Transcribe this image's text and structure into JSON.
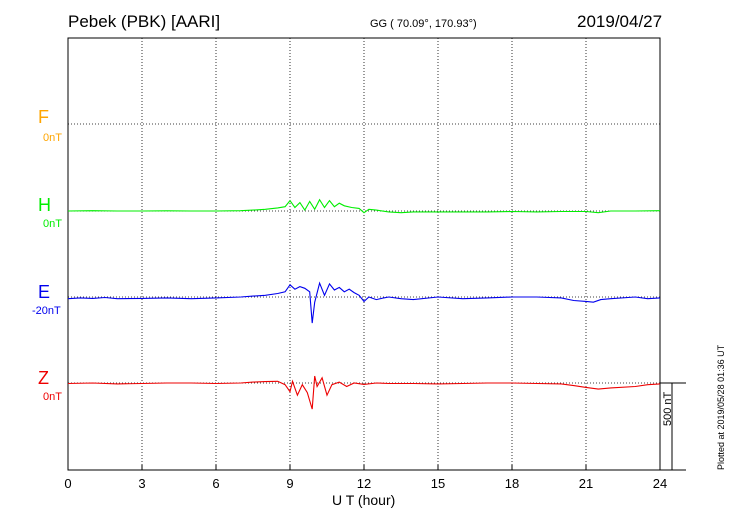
{
  "header": {
    "station": "Pebek (PBK)  [AARI]",
    "coords": "GG ( 70.09°, 170.93°)",
    "date": "2019/04/27"
  },
  "footer": {
    "plotted": "Plotted at 2019/05/28 01:36 UT"
  },
  "chart_data": {
    "type": "line",
    "xlabel": "U T (hour)",
    "xlim": [
      0,
      24
    ],
    "xticks": [
      "0",
      "3",
      "6",
      "9",
      "12",
      "15",
      "18",
      "21",
      "24"
    ],
    "scale_bar": "500 nT",
    "grid": true,
    "series": [
      {
        "name": "F",
        "offset_label": "0nT",
        "color": "#ffa500",
        "x": [],
        "y": []
      },
      {
        "name": "H",
        "offset_label": "0nT",
        "color": "#00ee00",
        "x": [
          0,
          1,
          2,
          3,
          4,
          5,
          6,
          7,
          7.5,
          8,
          8.5,
          8.8,
          9.0,
          9.2,
          9.4,
          9.6,
          9.8,
          10.0,
          10.2,
          10.4,
          10.6,
          10.8,
          11.0,
          11.2,
          11.5,
          11.8,
          12.0,
          12.2,
          12.5,
          13.0,
          13.5,
          14,
          15,
          16,
          17,
          18,
          19,
          20,
          21,
          21.5,
          22,
          23,
          24
        ],
        "y": [
          0,
          2,
          0,
          0,
          1,
          0,
          0,
          2,
          5,
          10,
          18,
          25,
          60,
          20,
          48,
          5,
          55,
          10,
          65,
          20,
          60,
          25,
          45,
          30,
          20,
          15,
          -10,
          10,
          5,
          -5,
          -10,
          -5,
          -5,
          -5,
          -5,
          -3,
          -5,
          -3,
          -3,
          -10,
          0,
          0,
          2
        ]
      },
      {
        "name": "E",
        "offset_label": "-20nT",
        "color": "#0000ee",
        "x": [
          0,
          0.5,
          1,
          1.5,
          2,
          3,
          4,
          5,
          6,
          7,
          7.5,
          8,
          8.5,
          8.8,
          9.0,
          9.2,
          9.4,
          9.6,
          9.8,
          9.9,
          10.0,
          10.2,
          10.4,
          10.6,
          10.8,
          11.0,
          11.2,
          11.4,
          11.6,
          11.8,
          12.0,
          12.2,
          12.5,
          12.8,
          13.0,
          13.5,
          14,
          15,
          16,
          17,
          18,
          19,
          20,
          20.5,
          21,
          21.3,
          21.6,
          22,
          23,
          23.5,
          24
        ],
        "y": [
          -10,
          -5,
          -8,
          -3,
          -10,
          -8,
          -5,
          -10,
          -5,
          0,
          5,
          10,
          20,
          30,
          70,
          45,
          60,
          50,
          30,
          -150,
          -30,
          80,
          10,
          75,
          40,
          55,
          30,
          45,
          25,
          10,
          -25,
          0,
          -15,
          -5,
          0,
          -10,
          -15,
          0,
          -10,
          -5,
          0,
          0,
          -5,
          -20,
          -25,
          -30,
          -15,
          -10,
          0,
          -10,
          -5
        ]
      },
      {
        "name": "Z",
        "offset_label": "0nT",
        "color": "#ee0000",
        "x": [
          0,
          1,
          2,
          3,
          4,
          5,
          6,
          7,
          7.5,
          8,
          8.5,
          8.8,
          9.0,
          9.1,
          9.3,
          9.5,
          9.7,
          9.9,
          10.0,
          10.1,
          10.3,
          10.5,
          10.7,
          11.0,
          11.3,
          11.6,
          12.0,
          12.5,
          13,
          14,
          15,
          16,
          17,
          18,
          19,
          20,
          20.5,
          21,
          21.5,
          22,
          23,
          23.5,
          24
        ],
        "y": [
          -3,
          0,
          -5,
          -3,
          0,
          0,
          -3,
          0,
          5,
          8,
          10,
          -10,
          -50,
          10,
          -70,
          -10,
          -55,
          -150,
          40,
          -20,
          30,
          -70,
          -10,
          5,
          -20,
          0,
          -8,
          0,
          -3,
          -3,
          -5,
          -3,
          0,
          0,
          -3,
          -5,
          -15,
          -25,
          -35,
          -28,
          -20,
          -10,
          -5
        ]
      }
    ]
  }
}
